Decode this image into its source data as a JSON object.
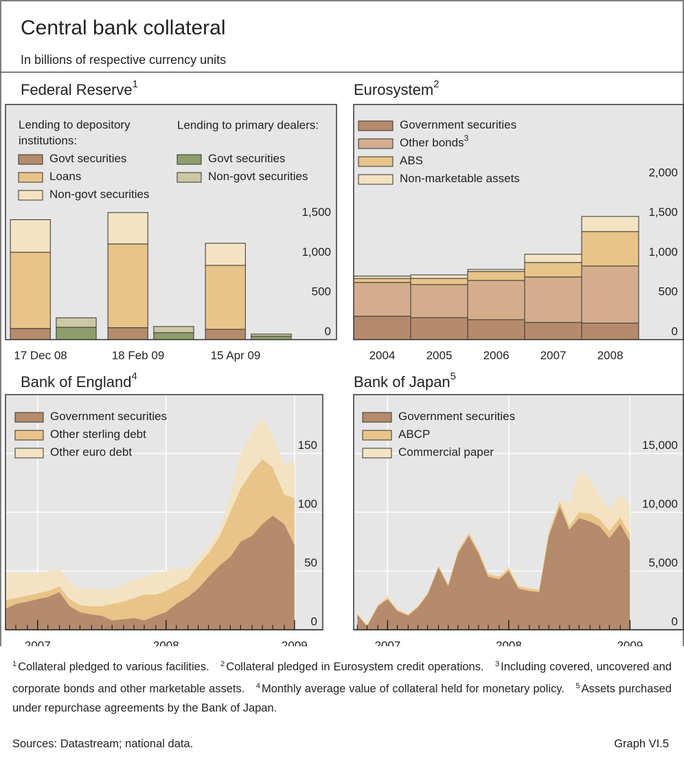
{
  "title": "Central bank collateral",
  "subtitle": "In billions of respective currency units",
  "chart_data": [
    {
      "type": "bar",
      "stacked": true,
      "title": "Federal Reserve",
      "title_note": "1",
      "categories": [
        "17 Dec 08",
        "18 Feb 09",
        "15 Apr 09"
      ],
      "groups": [
        {
          "name": "Lending to depository institutions:",
          "series": [
            {
              "name": "Govt securities",
              "color": "#b58b6b",
              "values": [
                140,
                150,
                130
              ]
            },
            {
              "name": "Loans",
              "color": "#e8c489",
              "values": [
                960,
                1055,
                805
              ]
            },
            {
              "name": "Non-govt securities",
              "color": "#f4e3c2",
              "values": [
                410,
                395,
                278
              ]
            }
          ]
        },
        {
          "name": "Lending to primary dealers:",
          "series": [
            {
              "name": "Govt securities",
              "color": "#8f9d6b",
              "values": [
                155,
                87,
                43
              ]
            },
            {
              "name": "Non-govt securities",
              "color": "#cbc8a4",
              "values": [
                120,
                78,
                27
              ]
            }
          ]
        }
      ],
      "ylim": [
        0,
        2960
      ],
      "yticks": [
        0,
        500,
        {
          "value": 1000,
          "label": "1,000"
        },
        {
          "value": 1500,
          "label": "1,500"
        }
      ],
      "grid": false
    },
    {
      "type": "bar",
      "stacked": true,
      "title": "Eurosystem",
      "title_note": "2",
      "categories": [
        "2004",
        "2005",
        "2006",
        "2007",
        "2008"
      ],
      "series": [
        {
          "name": "Government securities",
          "color": "#b58b6b",
          "values": [
            295,
            277,
            251,
            217,
            208
          ]
        },
        {
          "name": "Other bonds",
          "name_note": "3",
          "color": "#d4ae8c",
          "values": [
            425,
            416,
            494,
            572,
            719
          ]
        },
        {
          "name": "ABS",
          "color": "#e8c489",
          "values": [
            50,
            78,
            113,
            182,
            433
          ]
        },
        {
          "name": "Non-marketable assets",
          "color": "#f4e3c2",
          "values": [
            30,
            44,
            26,
            104,
            191
          ]
        }
      ],
      "ylim": [
        0,
        2960
      ],
      "yticks": [
        0,
        500,
        {
          "value": 1000,
          "label": "1,000"
        },
        {
          "value": 1500,
          "label": "1,500"
        },
        {
          "value": 2000,
          "label": "2,000"
        }
      ],
      "grid": false
    },
    {
      "type": "area",
      "stacked": true,
      "title": "Bank of England",
      "title_note": "4",
      "x": [
        2006.75,
        2006.83,
        2006.92,
        2007,
        2007.08,
        2007.17,
        2007.25,
        2007.33,
        2007.42,
        2007.5,
        2007.58,
        2007.67,
        2007.75,
        2007.83,
        2007.92,
        2008,
        2008.08,
        2008.17,
        2008.25,
        2008.33,
        2008.42,
        2008.5,
        2008.58,
        2008.67,
        2008.75,
        2008.83,
        2008.92,
        2009
      ],
      "series": [
        {
          "name": "Government securities",
          "color": "#b58b6b",
          "values": [
            18,
            22,
            24,
            26,
            28,
            32,
            20,
            15,
            13,
            12,
            8,
            9,
            10,
            8,
            12,
            15,
            22,
            28,
            35,
            45,
            55,
            62,
            75,
            80,
            90,
            97,
            90,
            72
          ]
        },
        {
          "name": "Other sterling debt",
          "color": "#e8c489",
          "values": [
            7,
            5,
            5,
            5,
            5,
            5,
            6,
            6,
            7,
            8,
            14,
            15,
            17,
            22,
            18,
            18,
            16,
            15,
            20,
            20,
            25,
            38,
            45,
            55,
            55,
            41,
            25,
            40
          ]
        },
        {
          "name": "Other euro debt",
          "color": "#f4e3c2",
          "values": [
            23,
            21,
            19,
            17,
            17,
            15,
            14,
            14,
            15,
            14,
            13,
            14,
            15,
            15,
            18,
            17,
            14,
            9,
            5,
            7,
            5,
            15,
            30,
            33,
            35,
            27,
            25,
            31
          ]
        }
      ],
      "xlim": [
        2006.75,
        2009.22
      ],
      "xticks": [
        2007,
        2008,
        2009
      ],
      "ylim": [
        0,
        200
      ],
      "yticks": [
        0,
        50,
        100,
        150
      ],
      "grid": true
    },
    {
      "type": "area",
      "stacked": true,
      "title": "Bank of Japan",
      "title_note": "5",
      "x": [
        2006.75,
        2006.83,
        2006.92,
        2007,
        2007.08,
        2007.17,
        2007.25,
        2007.33,
        2007.42,
        2007.5,
        2007.58,
        2007.67,
        2007.75,
        2007.83,
        2007.92,
        2008,
        2008.08,
        2008.17,
        2008.25,
        2008.33,
        2008.42,
        2008.5,
        2008.58,
        2008.67,
        2008.75,
        2008.83,
        2008.92,
        2009
      ],
      "series": [
        {
          "name": "Government securities",
          "color": "#b58b6b",
          "values": [
            1300,
            300,
            2000,
            2600,
            1600,
            1200,
            1900,
            3000,
            5300,
            3700,
            6500,
            8000,
            6500,
            4500,
            4300,
            5000,
            3500,
            3300,
            3200,
            8000,
            10500,
            8500,
            9500,
            9200,
            8800,
            7800,
            9000,
            7500
          ]
        },
        {
          "name": "ABCP",
          "color": "#e8c489",
          "values": [
            50,
            50,
            100,
            150,
            100,
            100,
            100,
            100,
            150,
            150,
            200,
            200,
            250,
            250,
            200,
            200,
            200,
            200,
            200,
            300,
            400,
            300,
            500,
            700,
            600,
            600,
            600,
            600
          ]
        },
        {
          "name": "Commercial paper",
          "color": "#f4e3c2",
          "values": [
            250,
            150,
            100,
            150,
            100,
            100,
            100,
            100,
            50,
            50,
            100,
            100,
            50,
            50,
            100,
            200,
            100,
            100,
            100,
            100,
            100,
            1900,
            3500,
            2900,
            1900,
            1900,
            1900,
            2400
          ]
        }
      ],
      "xlim": [
        2006.72,
        2009.44
      ],
      "xticks": [
        2007,
        2008,
        2009
      ],
      "ylim": [
        0,
        20000
      ],
      "yticks": [
        0,
        {
          "value": 5000,
          "label": "5,000"
        },
        {
          "value": 10000,
          "label": "10,000"
        },
        {
          "value": 15000,
          "label": "15,000"
        }
      ],
      "grid": true
    }
  ],
  "footnotes": [
    {
      "mark": "1",
      "text": "Collateral pledged to various facilities."
    },
    {
      "mark": "2",
      "text": "Collateral pledged in Eurosystem credit operations."
    },
    {
      "mark": "3",
      "text": "Including covered, uncovered and corporate bonds and other marketable assets."
    },
    {
      "mark": "4",
      "text": "Monthly average value of collateral held for monetary policy."
    },
    {
      "mark": "5",
      "text": "Assets purchased under repurchase agreements by the Bank of Japan."
    }
  ],
  "sources": "Sources: Datastream; national data.",
  "graph_label": "Graph VI.5"
}
